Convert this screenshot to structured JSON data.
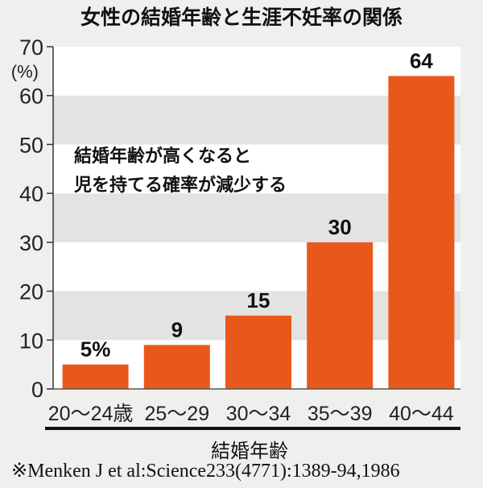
{
  "chart_data": {
    "type": "bar",
    "title": "女性の結婚年齢と生涯不妊率の関係",
    "categories": [
      "20〜24歳",
      "25〜29",
      "30〜34",
      "35〜39",
      "40〜44"
    ],
    "values": [
      5,
      9,
      15,
      30,
      64
    ],
    "data_labels": [
      "5%",
      "9",
      "15",
      "30",
      "64"
    ],
    "ylabel": "(%)",
    "xlabel": "結婚年齢",
    "ylim": [
      0,
      70
    ],
    "yticks": [
      0,
      10,
      20,
      30,
      40,
      50,
      60,
      70
    ],
    "annotation": [
      "結婚年齢が高くなると",
      "児を持てる確率が減少する"
    ],
    "source": "※Menken J et al:Science233(4771):1389-94,1986",
    "grid": "alternating horizontal bands",
    "bar_color": "#e8581b"
  }
}
